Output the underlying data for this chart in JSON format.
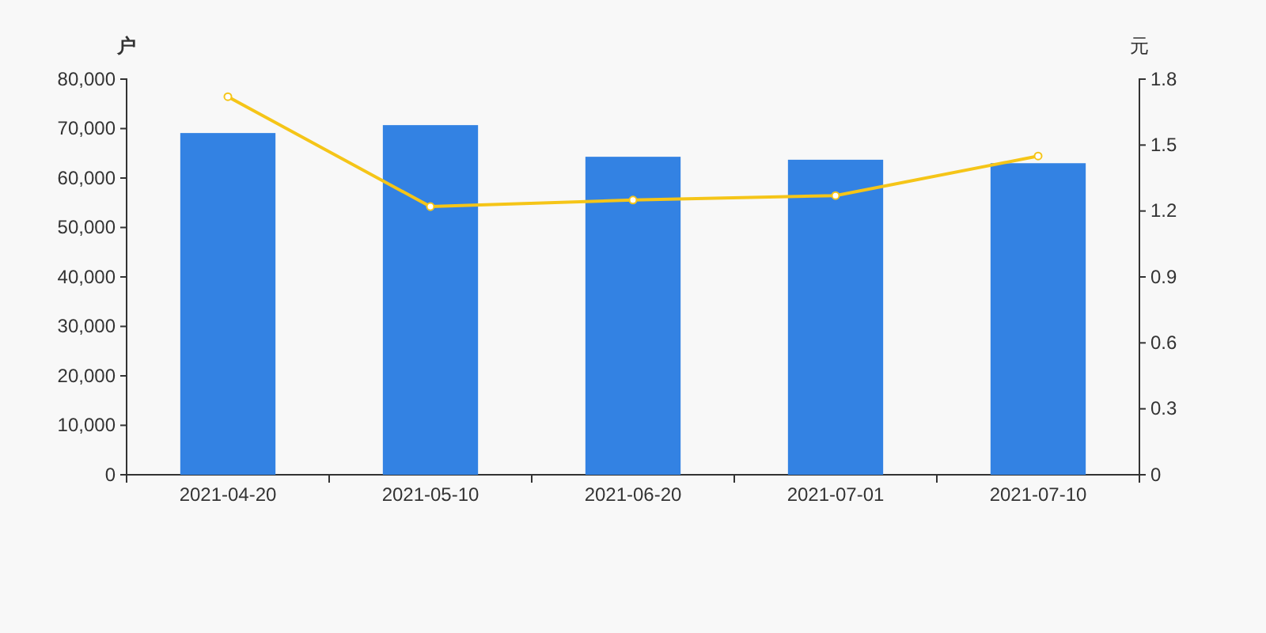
{
  "chart_data": {
    "type": "bar",
    "ylabel": "户",
    "y2label": "元",
    "categories": [
      "2021-04-20",
      "2021-05-10",
      "2021-06-20",
      "2021-07-01",
      "2021-07-10"
    ],
    "series": [
      {
        "color": "#3382e3",
        "values": [
          69100,
          70700,
          64300,
          63700,
          63000
        ]
      },
      {
        "type": "line",
        "axis": "y2",
        "color": "#f5c518",
        "marker": "circle",
        "values": [
          1.72,
          1.22,
          1.25,
          1.27,
          1.45
        ]
      }
    ],
    "ylim": [
      0,
      80000
    ],
    "yticks": [
      0,
      {
        "value": 10000,
        "label": "10,000"
      },
      {
        "value": 20000,
        "label": "20,000"
      },
      {
        "value": 30000,
        "label": "30,000"
      },
      {
        "value": 40000,
        "label": "40,000"
      },
      {
        "value": 50000,
        "label": "50,000"
      },
      {
        "value": 60000,
        "label": "60,000"
      },
      {
        "value": 70000,
        "label": "70,000"
      },
      {
        "value": 80000,
        "label": "80,000"
      }
    ],
    "y2lim": [
      0,
      1.8
    ],
    "y2ticks": [
      0,
      0.3,
      0.6,
      0.9,
      1.2,
      1.5,
      1.8
    ],
    "grid": false
  }
}
